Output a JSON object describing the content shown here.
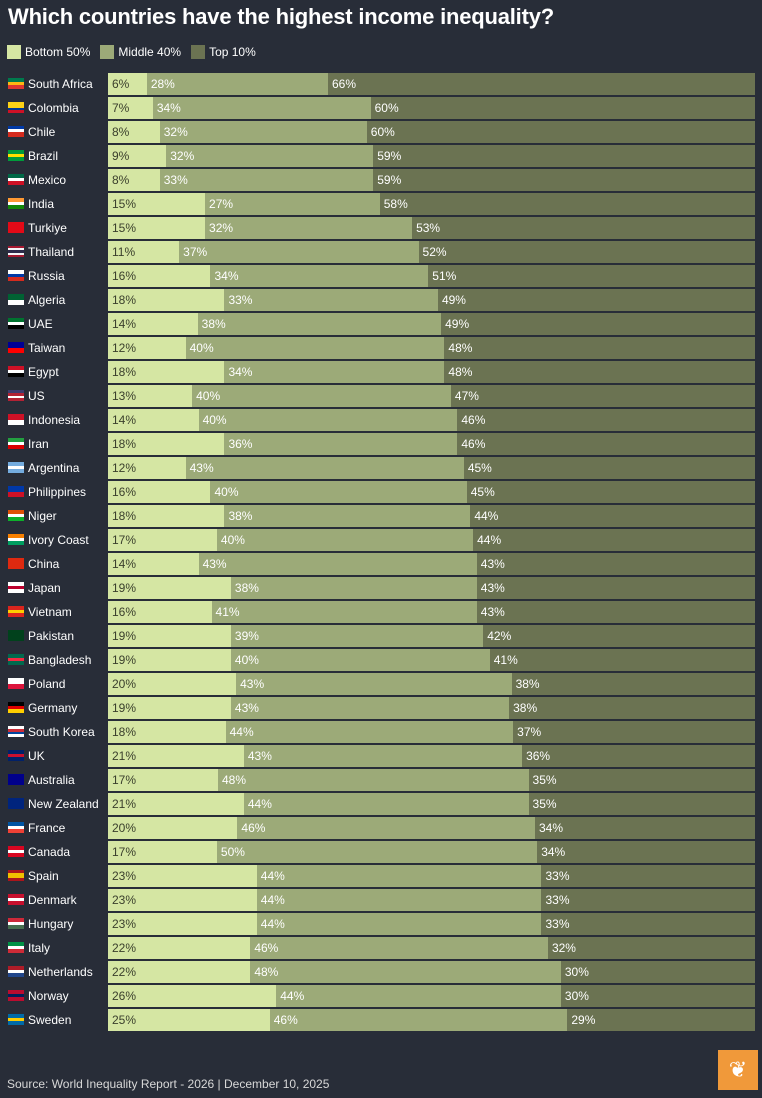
{
  "title": "Which countries have the highest income inequality?",
  "source": "Source: World Inequality Report - 2026 | December 10, 2025",
  "logo": "Al Jazeera",
  "chart_data": {
    "type": "bar",
    "stacked": true,
    "orientation": "horizontal",
    "title": "Which countries have the highest income inequality?",
    "legend_position": "top-left",
    "series": [
      {
        "name": "Bottom 50%",
        "color": "#d5e6a3"
      },
      {
        "name": "Middle 40%",
        "color": "#9caa78"
      },
      {
        "name": "Top 10%",
        "color": "#6b7352"
      }
    ],
    "rows": [
      {
        "country": "South Africa",
        "values": [
          6,
          28,
          66
        ],
        "flag": [
          "#007a4d",
          "#ffb612",
          "#de3831"
        ]
      },
      {
        "country": "Colombia",
        "values": [
          7,
          34,
          60
        ],
        "flag": [
          "#fcd116",
          "#fcd116",
          "#003893",
          "#ce1126"
        ]
      },
      {
        "country": "Chile",
        "values": [
          8,
          32,
          60
        ],
        "flag": [
          "#0039a6",
          "#ffffff",
          "#d52b1e",
          "#d52b1e"
        ]
      },
      {
        "country": "Brazil",
        "values": [
          9,
          32,
          59
        ],
        "flag": [
          "#009c3b",
          "#ffdf00",
          "#009c3b"
        ]
      },
      {
        "country": "Mexico",
        "values": [
          8,
          33,
          59
        ],
        "flag": [
          "#006847",
          "#ffffff",
          "#ce1126"
        ]
      },
      {
        "country": "India",
        "values": [
          15,
          27,
          58
        ],
        "flag": [
          "#ff9933",
          "#ffffff",
          "#138808"
        ]
      },
      {
        "country": "Turkiye",
        "values": [
          15,
          32,
          53
        ],
        "flag": [
          "#e30a17",
          "#e30a17"
        ]
      },
      {
        "country": "Thailand",
        "values": [
          11,
          37,
          52
        ],
        "flag": [
          "#a51931",
          "#f4f5f8",
          "#2d2a4a",
          "#f4f5f8",
          "#a51931"
        ]
      },
      {
        "country": "Russia",
        "values": [
          16,
          34,
          51
        ],
        "flag": [
          "#ffffff",
          "#0039a6",
          "#d52b1e"
        ]
      },
      {
        "country": "Algeria",
        "values": [
          18,
          33,
          49
        ],
        "flag": [
          "#006233",
          "#ffffff"
        ]
      },
      {
        "country": "UAE",
        "values": [
          14,
          38,
          49
        ],
        "flag": [
          "#00732f",
          "#ffffff",
          "#000000"
        ]
      },
      {
        "country": "Taiwan",
        "values": [
          12,
          40,
          48
        ],
        "flag": [
          "#000095",
          "#fe0000"
        ]
      },
      {
        "country": "Egypt",
        "values": [
          18,
          34,
          48
        ],
        "flag": [
          "#ce1126",
          "#ffffff",
          "#000000"
        ]
      },
      {
        "country": "US",
        "values": [
          13,
          40,
          47
        ],
        "flag": [
          "#3c3b6e",
          "#b22234",
          "#ffffff",
          "#b22234"
        ]
      },
      {
        "country": "Indonesia",
        "values": [
          14,
          40,
          46
        ],
        "flag": [
          "#ce1126",
          "#ffffff"
        ]
      },
      {
        "country": "Iran",
        "values": [
          18,
          36,
          46
        ],
        "flag": [
          "#239f40",
          "#ffffff",
          "#da0000"
        ]
      },
      {
        "country": "Argentina",
        "values": [
          12,
          43,
          45
        ],
        "flag": [
          "#74acdf",
          "#ffffff",
          "#74acdf"
        ]
      },
      {
        "country": "Philippines",
        "values": [
          16,
          40,
          45
        ],
        "flag": [
          "#0038a8",
          "#ce1126"
        ]
      },
      {
        "country": "Niger",
        "values": [
          18,
          38,
          44
        ],
        "flag": [
          "#e05206",
          "#ffffff",
          "#0db02b"
        ]
      },
      {
        "country": "Ivory Coast",
        "values": [
          17,
          40,
          44
        ],
        "flag": [
          "#f77f00",
          "#ffffff",
          "#009e60"
        ]
      },
      {
        "country": "China",
        "values": [
          14,
          43,
          43
        ],
        "flag": [
          "#de2910",
          "#de2910"
        ]
      },
      {
        "country": "Japan",
        "values": [
          19,
          38,
          43
        ],
        "flag": [
          "#ffffff",
          "#bc002d",
          "#ffffff"
        ]
      },
      {
        "country": "Vietnam",
        "values": [
          16,
          41,
          43
        ],
        "flag": [
          "#da251d",
          "#ffcd00",
          "#da251d"
        ]
      },
      {
        "country": "Pakistan",
        "values": [
          19,
          39,
          42
        ],
        "flag": [
          "#01411c",
          "#01411c"
        ]
      },
      {
        "country": "Bangladesh",
        "values": [
          19,
          40,
          41
        ],
        "flag": [
          "#006a4e",
          "#f42a41",
          "#006a4e"
        ]
      },
      {
        "country": "Poland",
        "values": [
          20,
          43,
          38
        ],
        "flag": [
          "#ffffff",
          "#dc143c"
        ]
      },
      {
        "country": "Germany",
        "values": [
          19,
          43,
          38
        ],
        "flag": [
          "#000000",
          "#dd0000",
          "#ffce00"
        ]
      },
      {
        "country": "South Korea",
        "values": [
          18,
          44,
          37
        ],
        "flag": [
          "#ffffff",
          "#cd2e3a",
          "#0047a0",
          "#ffffff"
        ]
      },
      {
        "country": "UK",
        "values": [
          21,
          43,
          36
        ],
        "flag": [
          "#012169",
          "#c8102e",
          "#012169"
        ]
      },
      {
        "country": "Australia",
        "values": [
          17,
          48,
          35
        ],
        "flag": [
          "#00008b",
          "#00008b"
        ]
      },
      {
        "country": "New Zealand",
        "values": [
          21,
          44,
          35
        ],
        "flag": [
          "#00247d",
          "#00247d"
        ]
      },
      {
        "country": "France",
        "values": [
          20,
          46,
          34
        ],
        "flag": [
          "#0055a4",
          "#ffffff",
          "#ef4135"
        ]
      },
      {
        "country": "Canada",
        "values": [
          17,
          50,
          34
        ],
        "flag": [
          "#d80621",
          "#ffffff",
          "#d80621"
        ]
      },
      {
        "country": "Spain",
        "values": [
          23,
          44,
          33
        ],
        "flag": [
          "#aa151b",
          "#f1bf00",
          "#f1bf00",
          "#aa151b"
        ]
      },
      {
        "country": "Denmark",
        "values": [
          23,
          44,
          33
        ],
        "flag": [
          "#c8102e",
          "#ffffff",
          "#c8102e"
        ]
      },
      {
        "country": "Hungary",
        "values": [
          23,
          44,
          33
        ],
        "flag": [
          "#ce2939",
          "#ffffff",
          "#477050"
        ]
      },
      {
        "country": "Italy",
        "values": [
          22,
          46,
          32
        ],
        "flag": [
          "#009246",
          "#ffffff",
          "#ce2b37"
        ]
      },
      {
        "country": "Netherlands",
        "values": [
          22,
          48,
          30
        ],
        "flag": [
          "#ae1c28",
          "#ffffff",
          "#21468b"
        ]
      },
      {
        "country": "Norway",
        "values": [
          26,
          44,
          30
        ],
        "flag": [
          "#ba0c2f",
          "#00205b",
          "#ba0c2f"
        ]
      },
      {
        "country": "Sweden",
        "values": [
          25,
          46,
          29
        ],
        "flag": [
          "#006aa7",
          "#fecc00",
          "#006aa7"
        ]
      }
    ]
  }
}
